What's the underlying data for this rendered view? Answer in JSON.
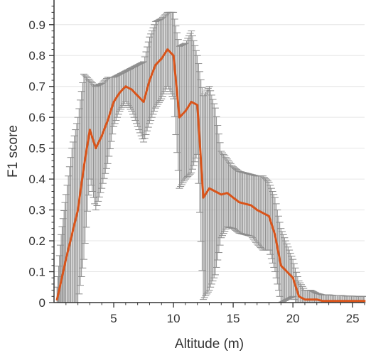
{
  "chart_data": {
    "type": "line",
    "title": "",
    "xlabel": "Altitude (m)",
    "ylabel": "F1 score",
    "xlim": [
      0,
      26
    ],
    "ylim": [
      0,
      0.98
    ],
    "x_ticks": [
      5,
      10,
      15,
      20,
      25
    ],
    "x_tick_labels": [
      "5",
      "10",
      "15",
      "20",
      "25"
    ],
    "y_ticks": [
      0,
      0.1,
      0.2,
      0.3,
      0.4,
      0.5,
      0.6,
      0.7,
      0.8,
      0.9
    ],
    "y_tick_labels": [
      "0",
      "0.1",
      "0.2",
      "0.3",
      "0.4",
      "0.5",
      "0.6",
      "0.7",
      "0.8",
      "0.9"
    ],
    "grid": true,
    "legend": "none",
    "colors": {
      "line": "#d9541a",
      "error_bars": "#8c8c8c",
      "grid": "#e6e6e6",
      "axis": "#333333"
    },
    "series": [
      {
        "x": [
          0.25,
          0.6,
          1.0,
          1.5,
          2.0,
          2.5,
          3.0,
          3.5,
          4.0,
          4.5,
          5.0,
          5.5,
          6.0,
          6.5,
          7.0,
          7.5,
          8.0,
          8.5,
          9.0,
          9.5,
          10.0,
          10.5,
          11.0,
          11.5,
          12.0,
          12.5,
          13.0,
          13.5,
          14.0,
          14.5,
          15.0,
          15.5,
          16.0,
          16.5,
          17.0,
          17.5,
          18.0,
          18.5,
          19.0,
          19.5,
          20.0,
          20.5,
          21.0,
          21.5,
          22.0,
          22.5,
          23.0,
          23.5,
          24.0,
          24.5,
          25.0,
          25.5,
          26.0
        ],
        "y": [
          0.01,
          0.07,
          0.14,
          0.22,
          0.3,
          0.44,
          0.56,
          0.5,
          0.54,
          0.59,
          0.65,
          0.68,
          0.7,
          0.69,
          0.67,
          0.65,
          0.72,
          0.77,
          0.79,
          0.82,
          0.8,
          0.6,
          0.62,
          0.65,
          0.64,
          0.34,
          0.37,
          0.36,
          0.35,
          0.355,
          0.34,
          0.325,
          0.32,
          0.315,
          0.3,
          0.29,
          0.28,
          0.22,
          0.12,
          0.1,
          0.08,
          0.02,
          0.01,
          0.01,
          0.01,
          0.005,
          0.005,
          0.005,
          0.005,
          0.005,
          0.005,
          0.005,
          0.005
        ],
        "err": [
          0.04,
          0.15,
          0.21,
          0.28,
          0.3,
          0.3,
          0.16,
          0.2,
          0.17,
          0.14,
          0.08,
          0.06,
          0.05,
          0.07,
          0.1,
          0.13,
          0.14,
          0.14,
          0.13,
          0.12,
          0.14,
          0.23,
          0.22,
          0.23,
          0.16,
          0.33,
          0.33,
          0.27,
          0.14,
          0.11,
          0.1,
          0.1,
          0.1,
          0.1,
          0.11,
          0.12,
          0.11,
          0.12,
          0.12,
          0.09,
          0.06,
          0.05,
          0.03,
          0.03,
          0.02,
          0.02,
          0.02,
          0.018,
          0.018,
          0.016,
          0.016,
          0.015,
          0.015
        ]
      }
    ]
  }
}
